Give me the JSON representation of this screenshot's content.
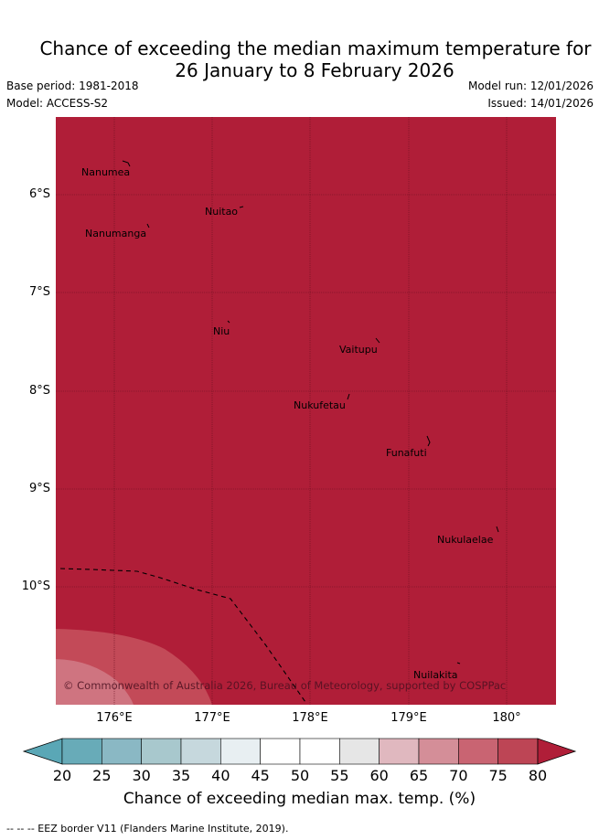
{
  "title": {
    "line1": "Chance of exceeding the median maximum temperature for",
    "line2": "26 January to 8 February 2026"
  },
  "meta": {
    "base_period": "Base period: 1981-2018",
    "model": "Model: ACCESS-S2",
    "model_run": "Model run: 12/01/2026",
    "issued": "Issued: 14/01/2026"
  },
  "colors": {
    "background_fill": "#b01e38",
    "mid_band": "#c34a58",
    "low_band": "#cf7480"
  },
  "map": {
    "lat_labels": [
      "6°S",
      "7°S",
      "8°S",
      "9°S",
      "10°S"
    ],
    "lon_labels": [
      "176°E",
      "177°E",
      "178°E",
      "179°E",
      "180°"
    ],
    "places": [
      {
        "name": "Nanumea"
      },
      {
        "name": "Nuitao"
      },
      {
        "name": "Nanumanga"
      },
      {
        "name": "Niu"
      },
      {
        "name": "Vaitupu"
      },
      {
        "name": "Nukufetau"
      },
      {
        "name": "Funafuti"
      },
      {
        "name": "Nukulaelae"
      },
      {
        "name": "Nuilakita"
      }
    ],
    "copyright": "© Commonwealth of Australia 2026, Bureau of Meteorology, supported by COSPPac"
  },
  "colorbar": {
    "ticks": [
      "20",
      "25",
      "30",
      "35",
      "40",
      "45",
      "50",
      "55",
      "60",
      "65",
      "70",
      "75",
      "80"
    ],
    "colors": [
      "#68abb8",
      "#8ab8c4",
      "#a8c8cd",
      "#c6d8dd",
      "#e8eff2",
      "#ffffff",
      "#ffffff",
      "#e6e6e6",
      "#e0b8bf",
      "#d48e98",
      "#c96472",
      "#bd4555"
    ],
    "under_color": "#5aa7b6",
    "over_color": "#b01e38",
    "label": "Chance of exceeding median max. temp. (%)"
  },
  "footer": "-- -- -- EEZ border V11 (Flanders Marine Institute, 2019)."
}
